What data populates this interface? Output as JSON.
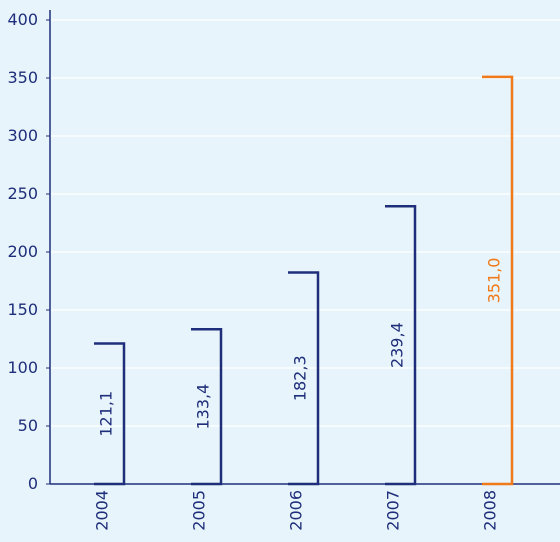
{
  "chart_data": {
    "type": "bar",
    "title": "",
    "xlabel": "",
    "ylabel": "",
    "categories": [
      "2004",
      "2005",
      "2006",
      "2007",
      "2008"
    ],
    "values": [
      121.1,
      133.4,
      182.3,
      239.4,
      351.0
    ],
    "value_labels": [
      "121,1",
      "133,4",
      "182,3",
      "239,4",
      "351,0"
    ],
    "highlight_index": 4,
    "ylim": [
      0,
      400
    ],
    "yticks": [
      0,
      50,
      100,
      150,
      200,
      250,
      300,
      350,
      400
    ],
    "grid": true,
    "legend": "none"
  },
  "colors": {
    "background": "#e7f4fb",
    "gridline": "#ffffff",
    "axis": "#1f2e7a",
    "bar": "#1f2e7a",
    "highlight": "#f07a1a",
    "tick_text": "#1f2e7a"
  }
}
